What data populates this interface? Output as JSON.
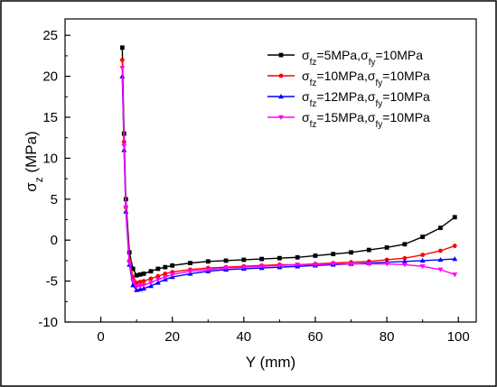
{
  "chart_data": {
    "type": "line",
    "title": "",
    "xlabel": "Y (mm)",
    "ylabel": "σz (MPa)",
    "xlim": [
      -10,
      105
    ],
    "ylim": [
      -10,
      27
    ],
    "xticks": [
      0,
      20,
      40,
      60,
      80,
      100
    ],
    "yticks": [
      -10,
      -5,
      0,
      5,
      10,
      15,
      20,
      25
    ],
    "grid": false,
    "legend_position": "top-right",
    "series": [
      {
        "name": "σfz=5MPa,σfy=10MPa",
        "color": "#000000",
        "marker": "square",
        "x": [
          6,
          6.5,
          7,
          8,
          9,
          10,
          11,
          12,
          14,
          16,
          18,
          20,
          25,
          30,
          35,
          40,
          45,
          50,
          55,
          60,
          65,
          70,
          75,
          80,
          85,
          90,
          95,
          99
        ],
        "y": [
          23.5,
          13,
          5,
          -1.5,
          -3.5,
          -4.3,
          -4.2,
          -4.1,
          -3.8,
          -3.5,
          -3.3,
          -3.1,
          -2.8,
          -2.6,
          -2.5,
          -2.4,
          -2.3,
          -2.2,
          -2.1,
          -1.9,
          -1.7,
          -1.5,
          -1.2,
          -0.9,
          -0.5,
          0.4,
          1.5,
          2.8
        ]
      },
      {
        "name": "σfz=10MPa,σfy=10MPa",
        "color": "#ff0000",
        "marker": "circle",
        "x": [
          6,
          6.5,
          7,
          8,
          9,
          10,
          11,
          12,
          14,
          16,
          18,
          20,
          25,
          30,
          35,
          40,
          45,
          50,
          55,
          60,
          65,
          70,
          75,
          80,
          85,
          90,
          95,
          99
        ],
        "y": [
          22,
          12,
          4,
          -2.5,
          -4.5,
          -5.2,
          -5.1,
          -5,
          -4.7,
          -4.4,
          -4.1,
          -3.9,
          -3.6,
          -3.4,
          -3.3,
          -3.2,
          -3.1,
          -3,
          -3,
          -2.9,
          -2.8,
          -2.7,
          -2.6,
          -2.4,
          -2.2,
          -1.8,
          -1.3,
          -0.7
        ]
      },
      {
        "name": "σfz=12MPa,σfy=10MPa",
        "color": "#0000ff",
        "marker": "triangle-up",
        "x": [
          6,
          6.5,
          7,
          8,
          9,
          10,
          11,
          12,
          14,
          16,
          18,
          20,
          25,
          30,
          35,
          40,
          45,
          50,
          55,
          60,
          65,
          70,
          75,
          80,
          85,
          90,
          95,
          99
        ],
        "y": [
          20,
          11,
          3.5,
          -3,
          -5.5,
          -6.1,
          -6,
          -5.9,
          -5.6,
          -5.2,
          -4.8,
          -4.5,
          -4.1,
          -3.8,
          -3.6,
          -3.5,
          -3.4,
          -3.3,
          -3.2,
          -3.1,
          -3,
          -2.9,
          -2.8,
          -2.7,
          -2.6,
          -2.5,
          -2.4,
          -2.3
        ]
      },
      {
        "name": "σfz=15MPa,σfy=10MPa",
        "color": "#ff00ff",
        "marker": "triangle-down",
        "x": [
          6,
          6.5,
          7,
          8,
          9,
          10,
          11,
          12,
          14,
          16,
          18,
          20,
          25,
          30,
          35,
          40,
          45,
          50,
          55,
          60,
          65,
          70,
          75,
          80,
          85,
          90,
          95,
          99
        ],
        "y": [
          21,
          11.5,
          4,
          -2.8,
          -5,
          -5.7,
          -5.6,
          -5.5,
          -5.2,
          -4.8,
          -4.5,
          -4.2,
          -3.8,
          -3.6,
          -3.4,
          -3.3,
          -3.2,
          -3.1,
          -3,
          -3,
          -2.9,
          -2.9,
          -2.9,
          -2.9,
          -3,
          -3.2,
          -3.6,
          -4.2
        ]
      }
    ]
  }
}
